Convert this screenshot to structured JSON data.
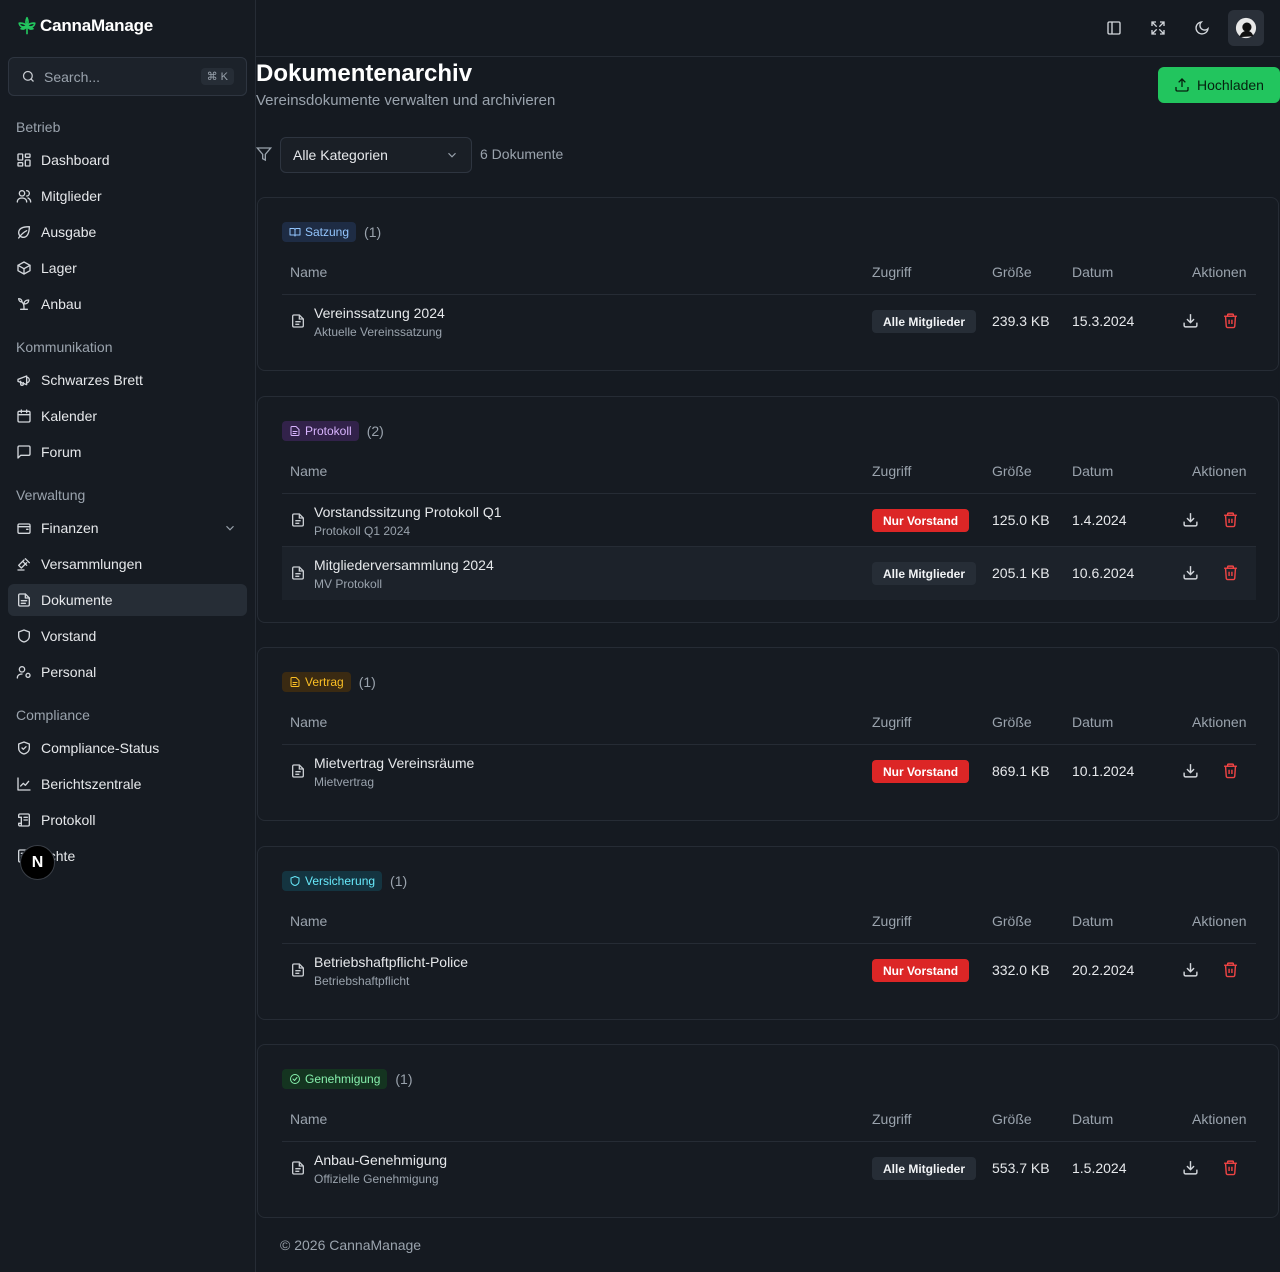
{
  "app": {
    "name": "CannaManage"
  },
  "search": {
    "placeholder": "Search...",
    "shortcut": "⌘ K"
  },
  "sidebar": {
    "groups": [
      {
        "label": "Betrieb",
        "items": [
          {
            "label": "Dashboard",
            "icon": "dashboard-icon"
          },
          {
            "label": "Mitglieder",
            "icon": "users-icon"
          },
          {
            "label": "Ausgabe",
            "icon": "leaf-icon"
          },
          {
            "label": "Lager",
            "icon": "package-icon"
          },
          {
            "label": "Anbau",
            "icon": "sprout-icon"
          }
        ]
      },
      {
        "label": "Kommunikation",
        "items": [
          {
            "label": "Schwarzes Brett",
            "icon": "megaphone-icon"
          },
          {
            "label": "Kalender",
            "icon": "calendar-icon"
          },
          {
            "label": "Forum",
            "icon": "message-icon"
          }
        ]
      },
      {
        "label": "Verwaltung",
        "items": [
          {
            "label": "Finanzen",
            "icon": "wallet-icon",
            "expandable": true
          },
          {
            "label": "Versammlungen",
            "icon": "gavel-icon"
          },
          {
            "label": "Dokumente",
            "icon": "file-icon",
            "active": true
          },
          {
            "label": "Vorstand",
            "icon": "shield-icon"
          },
          {
            "label": "Personal",
            "icon": "user-cog-icon"
          }
        ]
      },
      {
        "label": "Compliance",
        "items": [
          {
            "label": "Compliance-Status",
            "icon": "shield-check-icon"
          },
          {
            "label": "Berichtszentrale",
            "icon": "chart-icon"
          },
          {
            "label": "Protokoll",
            "icon": "scroll-icon"
          },
          {
            "label": "richte",
            "icon": "report-icon"
          }
        ]
      }
    ]
  },
  "page": {
    "title": "Dokumentenarchiv",
    "subtitle": "Vereinsdokumente verwalten und archivieren",
    "upload_label": "Hochladen",
    "filter_value": "Alle Kategorien",
    "doc_count": "6 Dokumente",
    "footer": "© 2026 CannaManage"
  },
  "table_headers": {
    "name": "Name",
    "access": "Zugriff",
    "size": "Größe",
    "date": "Datum",
    "actions": "Aktionen"
  },
  "categories": [
    {
      "label": "Satzung",
      "count": "(1)",
      "color": "#93c5fd",
      "bg": "#1e2c44",
      "docs": [
        {
          "name": "Vereinssatzung 2024",
          "desc": "Aktuelle Vereinssatzung",
          "access": "Alle Mitglieder",
          "access_type": "all",
          "size": "239.3 KB",
          "date": "15.3.2024"
        }
      ]
    },
    {
      "label": "Protokoll",
      "count": "(2)",
      "color": "#d8b4fe",
      "bg": "#32224a",
      "docs": [
        {
          "name": "Vorstandssitzung Protokoll Q1",
          "desc": "Protokoll Q1 2024",
          "access": "Nur Vorstand",
          "access_type": "board",
          "size": "125.0 KB",
          "date": "1.4.2024"
        },
        {
          "name": "Mitgliederversammlung 2024",
          "desc": "MV Protokoll",
          "access": "Alle Mitglieder",
          "access_type": "all",
          "size": "205.1 KB",
          "date": "10.6.2024"
        }
      ]
    },
    {
      "label": "Vertrag",
      "count": "(1)",
      "color": "#fbbf24",
      "bg": "#3a2a12",
      "docs": [
        {
          "name": "Mietvertrag Vereinsräume",
          "desc": "Mietvertrag",
          "access": "Nur Vorstand",
          "access_type": "board",
          "size": "869.1 KB",
          "date": "10.1.2024"
        }
      ]
    },
    {
      "label": "Versicherung",
      "count": "(1)",
      "color": "#67e8f9",
      "bg": "#143440",
      "docs": [
        {
          "name": "Betriebshaftpflicht-Police",
          "desc": "Betriebshaftpflicht",
          "access": "Nur Vorstand",
          "access_type": "board",
          "size": "332.0 KB",
          "date": "20.2.2024"
        }
      ]
    },
    {
      "label": "Genehmigung",
      "count": "(1)",
      "color": "#86efac",
      "bg": "#143420",
      "docs": [
        {
          "name": "Anbau-Genehmigung",
          "desc": "Offizielle Genehmigung",
          "access": "Alle Mitglieder",
          "access_type": "all",
          "size": "553.7 KB",
          "date": "1.5.2024"
        }
      ]
    }
  ]
}
